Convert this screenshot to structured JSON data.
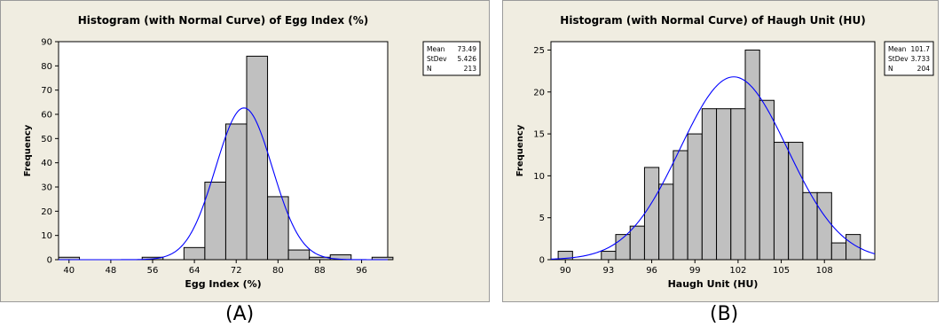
{
  "panel_labels": [
    "(A)",
    "(B)"
  ],
  "chart_data": [
    {
      "type": "bar",
      "title": "Histogram (with Normal Curve) of Egg Index (%)",
      "xlabel": "Egg Index (%)",
      "ylabel": "Frequency",
      "xlim": [
        38,
        101
      ],
      "ylim": [
        0,
        90
      ],
      "xticks": [
        40,
        48,
        56,
        64,
        72,
        80,
        88,
        96
      ],
      "yticks": [
        0,
        10,
        20,
        30,
        40,
        50,
        60,
        70,
        80,
        90
      ],
      "bin_width": 4,
      "bins": [
        {
          "center": 40,
          "count": 1
        },
        {
          "center": 44,
          "count": 0
        },
        {
          "center": 48,
          "count": 0
        },
        {
          "center": 52,
          "count": 0
        },
        {
          "center": 56,
          "count": 1
        },
        {
          "center": 60,
          "count": 0
        },
        {
          "center": 64,
          "count": 5
        },
        {
          "center": 68,
          "count": 32
        },
        {
          "center": 72,
          "count": 56
        },
        {
          "center": 76,
          "count": 84
        },
        {
          "center": 80,
          "count": 26
        },
        {
          "center": 84,
          "count": 4
        },
        {
          "center": 88,
          "count": 1
        },
        {
          "center": 92,
          "count": 2
        },
        {
          "center": 96,
          "count": 0
        },
        {
          "center": 100,
          "count": 1
        }
      ],
      "normal_curve": {
        "mean": 73.49,
        "stdev": 5.426,
        "n": 213
      },
      "stats": [
        {
          "label": "Mean",
          "value": "73.49"
        },
        {
          "label": "StDev",
          "value": "5.426"
        },
        {
          "label": "N",
          "value": "213"
        }
      ],
      "colors": {
        "bar_fill": "#c0c0c0",
        "bar_stroke": "#000000",
        "curve": "#0000ff",
        "frame_bg": "#f0ede1"
      }
    },
    {
      "type": "bar",
      "title": "Histogram (with Normal Curve) of Haugh Unit (HU)",
      "xlabel": "Haugh Unit (HU)",
      "ylabel": "Frequency",
      "xlim": [
        89,
        111.5
      ],
      "ylim": [
        0,
        26
      ],
      "xticks": [
        90,
        93,
        96,
        99,
        102,
        105,
        108
      ],
      "yticks": [
        0,
        5,
        10,
        15,
        20,
        25
      ],
      "bin_width": 1,
      "bins": [
        {
          "center": 90,
          "count": 1
        },
        {
          "center": 91,
          "count": 0
        },
        {
          "center": 92,
          "count": 0
        },
        {
          "center": 93,
          "count": 1
        },
        {
          "center": 94,
          "count": 3
        },
        {
          "center": 95,
          "count": 4
        },
        {
          "center": 96,
          "count": 11
        },
        {
          "center": 97,
          "count": 9
        },
        {
          "center": 98,
          "count": 13
        },
        {
          "center": 99,
          "count": 15
        },
        {
          "center": 100,
          "count": 18
        },
        {
          "center": 101,
          "count": 18
        },
        {
          "center": 102,
          "count": 18
        },
        {
          "center": 103,
          "count": 25
        },
        {
          "center": 104,
          "count": 19
        },
        {
          "center": 105,
          "count": 14
        },
        {
          "center": 106,
          "count": 14
        },
        {
          "center": 107,
          "count": 8
        },
        {
          "center": 108,
          "count": 8
        },
        {
          "center": 109,
          "count": 2
        },
        {
          "center": 110,
          "count": 3
        }
      ],
      "normal_curve": {
        "mean": 101.7,
        "stdev": 3.733,
        "n": 204
      },
      "stats": [
        {
          "label": "Mean",
          "value": "101.7"
        },
        {
          "label": "StDev",
          "value": "3.733"
        },
        {
          "label": "N",
          "value": "204"
        }
      ],
      "colors": {
        "bar_fill": "#c0c0c0",
        "bar_stroke": "#000000",
        "curve": "#0000ff",
        "frame_bg": "#f0ede1"
      }
    }
  ]
}
